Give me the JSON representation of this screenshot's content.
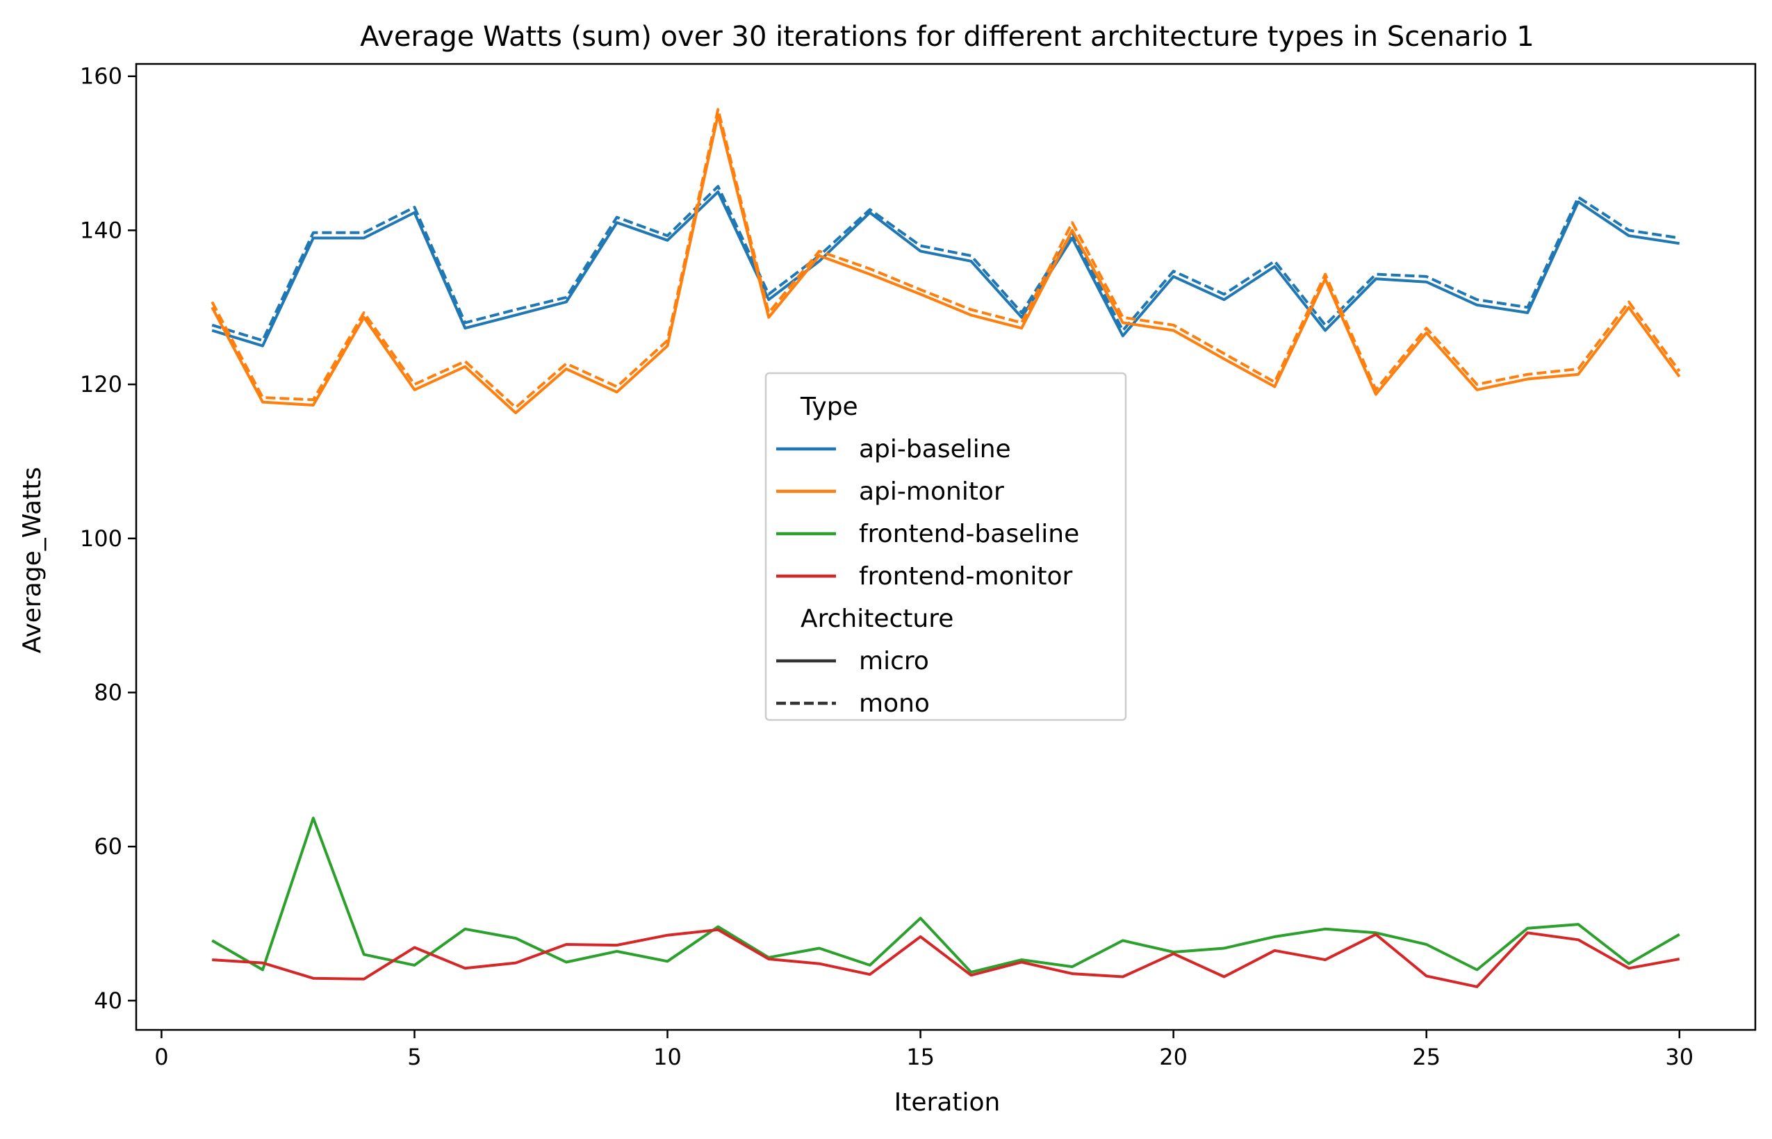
{
  "chart_data": {
    "type": "line",
    "title": "Average Watts (sum) over 30 iterations for different architecture types in Scenario 1",
    "xlabel": "Iteration",
    "ylabel": "Average_Watts",
    "xlim": [
      -0.5,
      31.5
    ],
    "ylim": [
      36.2,
      161.6
    ],
    "xticks": [
      0,
      5,
      10,
      15,
      20,
      25,
      30
    ],
    "yticks": [
      40,
      60,
      80,
      100,
      120,
      140,
      160
    ],
    "grid": false,
    "legend_placement": "center",
    "x": [
      1,
      2,
      3,
      4,
      5,
      6,
      7,
      8,
      9,
      10,
      11,
      12,
      13,
      14,
      15,
      16,
      17,
      18,
      19,
      20,
      21,
      22,
      23,
      24,
      25,
      26,
      27,
      28,
      29,
      30
    ],
    "legend": {
      "hue_title": "Type",
      "hue_entries": [
        {
          "label": "api-baseline",
          "color": "#1f77b4"
        },
        {
          "label": "api-monitor",
          "color": "#ff7f0e"
        },
        {
          "label": "frontend-baseline",
          "color": "#2ca02c"
        },
        {
          "label": "frontend-monitor",
          "color": "#d62728"
        }
      ],
      "style_title": "Architecture",
      "style_entries": [
        {
          "label": "micro",
          "dash": "solid"
        },
        {
          "label": "mono",
          "dash": "dashed"
        }
      ]
    },
    "series": [
      {
        "type": "api-baseline",
        "architecture": "micro",
        "color": "#1f77b4",
        "dash": "solid",
        "values": [
          127.0,
          125.0,
          139.0,
          139.0,
          142.3,
          127.3,
          129.0,
          130.7,
          141.0,
          138.7,
          145.0,
          131.0,
          136.0,
          142.3,
          137.3,
          136.0,
          128.7,
          139.0,
          126.3,
          134.0,
          131.0,
          135.3,
          127.0,
          133.7,
          133.3,
          130.3,
          129.3,
          143.7,
          139.3,
          138.3
        ]
      },
      {
        "type": "api-baseline",
        "architecture": "mono",
        "color": "#1f77b4",
        "dash": "dashed",
        "values": [
          127.7,
          125.7,
          139.7,
          139.7,
          143.0,
          128.0,
          129.7,
          131.3,
          141.7,
          139.3,
          145.7,
          131.7,
          136.7,
          142.7,
          138.0,
          136.7,
          129.3,
          139.7,
          127.0,
          134.7,
          131.7,
          136.0,
          127.7,
          134.3,
          134.0,
          131.0,
          130.0,
          144.3,
          140.0,
          139.0
        ]
      },
      {
        "type": "api-monitor",
        "architecture": "micro",
        "color": "#ff7f0e",
        "dash": "solid",
        "values": [
          130.0,
          117.7,
          117.3,
          128.7,
          119.3,
          122.3,
          116.3,
          122.0,
          119.0,
          125.0,
          155.0,
          128.7,
          136.7,
          134.3,
          131.7,
          129.0,
          127.3,
          140.0,
          128.0,
          127.0,
          123.3,
          119.7,
          133.7,
          118.7,
          126.7,
          119.3,
          120.7,
          121.3,
          130.0,
          121.0
        ]
      },
      {
        "type": "api-monitor",
        "architecture": "mono",
        "color": "#ff7f0e",
        "dash": "dashed",
        "values": [
          130.7,
          118.3,
          118.0,
          129.3,
          120.0,
          123.0,
          117.0,
          122.7,
          119.7,
          125.7,
          155.7,
          129.3,
          137.3,
          135.0,
          132.3,
          129.7,
          128.0,
          141.0,
          128.7,
          127.7,
          124.0,
          120.3,
          134.3,
          119.3,
          127.3,
          120.0,
          121.3,
          122.0,
          130.7,
          121.7
        ]
      },
      {
        "type": "frontend-baseline",
        "architecture": "micro",
        "color": "#2ca02c",
        "dash": "solid",
        "values": [
          47.8,
          44.0,
          63.7,
          46.0,
          44.6,
          49.3,
          48.1,
          45.0,
          46.4,
          45.1,
          49.6,
          45.6,
          46.8,
          44.6,
          50.7,
          43.7,
          45.3,
          44.4,
          47.8,
          46.3,
          46.8,
          48.3,
          49.3,
          48.8,
          47.3,
          44.0,
          49.4,
          49.9,
          44.8,
          48.6
        ]
      },
      {
        "type": "frontend-monitor",
        "architecture": "micro",
        "color": "#d62728",
        "dash": "solid",
        "values": [
          45.3,
          44.9,
          42.9,
          42.8,
          46.9,
          44.2,
          44.9,
          47.3,
          47.2,
          48.5,
          49.2,
          45.4,
          44.8,
          43.4,
          48.3,
          43.3,
          45.0,
          43.5,
          43.1,
          46.1,
          43.1,
          46.5,
          45.3,
          48.6,
          43.2,
          41.8,
          48.8,
          47.9,
          44.2,
          45.4
        ]
      }
    ]
  }
}
